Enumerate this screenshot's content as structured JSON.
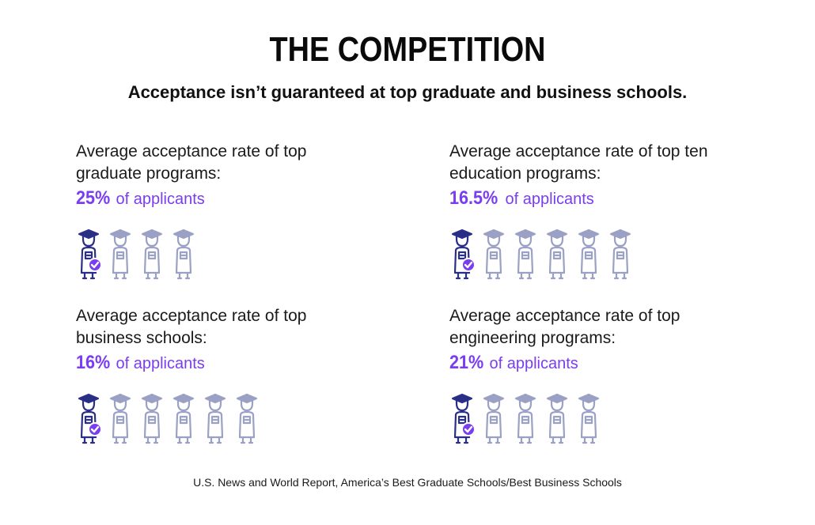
{
  "title": "THE COMPETITION",
  "subtitle": "Acceptance isn’t guaranteed at top graduate and business schools.",
  "colors": {
    "accepted": "#2a2f86",
    "rejected": "#9aa1c4",
    "accent": "#7a3df0"
  },
  "icon_name": "graduate-icon",
  "stats": [
    {
      "label_line1": "Average acceptance rate of top",
      "label_line2": "graduate programs:",
      "percent": "25%",
      "suffix": "of applicants",
      "icons_total": 4,
      "icons_accepted": 1
    },
    {
      "label_line1": "Average acceptance rate of top ten",
      "label_line2": "education programs:",
      "percent": "16.5%",
      "suffix": "of applicants",
      "icons_total": 6,
      "icons_accepted": 1
    },
    {
      "label_line1": "Average acceptance rate of top",
      "label_line2": "business schools:",
      "percent": "16%",
      "suffix": "of applicants",
      "icons_total": 6,
      "icons_accepted": 1
    },
    {
      "label_line1": "Average acceptance rate of top",
      "label_line2": "engineering programs:",
      "percent": "21%",
      "suffix": "of applicants",
      "icons_total": 5,
      "icons_accepted": 1
    }
  ],
  "source": "U.S. News and World Report, America’s Best Graduate Schools/Best Business Schools"
}
